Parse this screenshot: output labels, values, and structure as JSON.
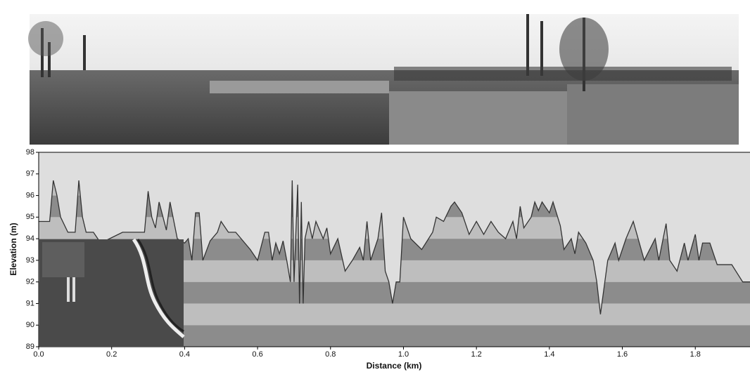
{
  "chart_data": {
    "type": "area",
    "xlabel": "Distance  (km)",
    "ylabel": "Elevation (m)",
    "xlim": [
      0,
      1.95
    ],
    "ylim": [
      89,
      98
    ],
    "xticks": [
      {
        "value": 0,
        "label": "0.0"
      },
      0.2,
      0.4,
      0.6,
      0.8,
      {
        "value": 1,
        "label": "1.0"
      },
      1.2,
      1.4,
      1.6,
      1.8
    ],
    "yticks": [
      89,
      90,
      91,
      92,
      93,
      94,
      95,
      96,
      97,
      98
    ],
    "background": "#dedede",
    "line_color": "#333333",
    "band_colors": [
      "#8c8c8c",
      "#bebebe"
    ],
    "x": [
      0,
      0.03,
      0.04,
      0.05,
      0.06,
      0.08,
      0.1,
      0.11,
      0.12,
      0.13,
      0.15,
      0.17,
      0.23,
      0.29,
      0.3,
      0.31,
      0.32,
      0.33,
      0.35,
      0.36,
      0.38,
      0.4,
      0.41,
      0.42,
      0.43,
      0.44,
      0.45,
      0.47,
      0.49,
      0.5,
      0.52,
      0.54,
      0.58,
      0.6,
      0.62,
      0.63,
      0.64,
      0.65,
      0.66,
      0.67,
      0.68,
      0.69,
      0.695,
      0.7,
      0.71,
      0.715,
      0.72,
      0.725,
      0.73,
      0.74,
      0.75,
      0.76,
      0.78,
      0.79,
      0.8,
      0.82,
      0.84,
      0.86,
      0.88,
      0.89,
      0.9,
      0.91,
      0.93,
      0.94,
      0.95,
      0.96,
      0.97,
      0.98,
      0.99,
      1.0,
      1.02,
      1.05,
      1.08,
      1.09,
      1.11,
      1.13,
      1.14,
      1.16,
      1.18,
      1.2,
      1.22,
      1.24,
      1.26,
      1.28,
      1.3,
      1.31,
      1.32,
      1.33,
      1.35,
      1.36,
      1.37,
      1.38,
      1.4,
      1.41,
      1.43,
      1.44,
      1.46,
      1.47,
      1.48,
      1.5,
      1.52,
      1.53,
      1.54,
      1.56,
      1.58,
      1.59,
      1.61,
      1.63,
      1.64,
      1.66,
      1.69,
      1.7,
      1.72,
      1.73,
      1.75,
      1.77,
      1.78,
      1.8,
      1.81,
      1.82,
      1.84,
      1.86,
      1.9,
      1.93,
      1.95
    ],
    "y": [
      94.8,
      94.8,
      96.7,
      96.0,
      95.0,
      94.3,
      94.3,
      96.7,
      95.0,
      94.3,
      94.3,
      93.8,
      94.3,
      94.3,
      96.2,
      95.0,
      94.5,
      95.7,
      94.4,
      95.7,
      94.0,
      93.8,
      94.0,
      93.0,
      95.2,
      95.2,
      93.0,
      93.9,
      94.3,
      94.8,
      94.3,
      94.3,
      93.5,
      93.0,
      94.3,
      94.3,
      93.0,
      93.8,
      93.3,
      93.9,
      93.0,
      92.0,
      96.7,
      92.0,
      96.5,
      91.0,
      95.7,
      91.0,
      94.0,
      94.8,
      94.0,
      94.8,
      94.0,
      94.5,
      93.3,
      94.0,
      92.5,
      93.0,
      93.6,
      93.0,
      94.8,
      93.0,
      94.0,
      95.2,
      92.5,
      92.0,
      91.0,
      92.0,
      92.0,
      95.0,
      94.0,
      93.5,
      94.3,
      95.0,
      94.8,
      95.5,
      95.7,
      95.2,
      94.2,
      94.8,
      94.2,
      94.8,
      94.3,
      94.0,
      94.8,
      94.0,
      95.5,
      94.5,
      95.0,
      95.7,
      95.3,
      95.7,
      95.2,
      95.7,
      94.6,
      93.5,
      94.0,
      93.3,
      94.3,
      93.8,
      93.0,
      92.0,
      90.5,
      93.0,
      93.8,
      93.0,
      94.0,
      94.8,
      94.2,
      93.0,
      94.0,
      93.0,
      94.7,
      93.0,
      92.5,
      93.8,
      93.0,
      94.2,
      93.0,
      93.8,
      93.8,
      92.8,
      92.8,
      92.0,
      92.0
    ]
  }
}
